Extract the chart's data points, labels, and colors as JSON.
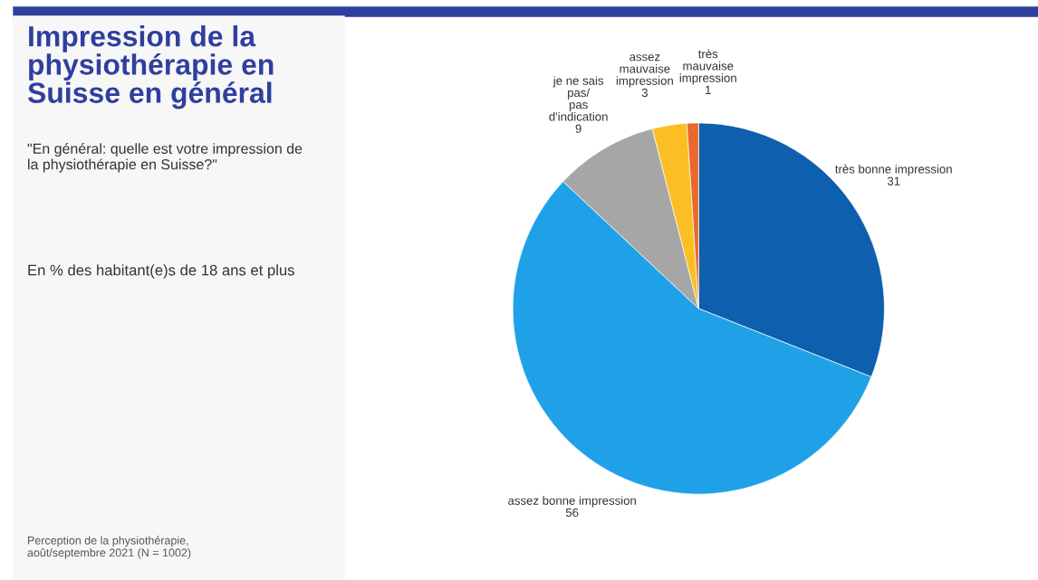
{
  "chart_data": {
    "type": "pie",
    "title": "Impression de la\nphysiothérapie en\nSuisse en général",
    "subtitle": "\"En général: quelle est votre impression de\nla physiothérapie en Suisse?\"",
    "categories": [
      "très bonne impression",
      "assez bonne impression",
      "je ne sais\npas/\npas\nd'indication",
      "assez\nmauvaise\nimpression",
      "très\nmauvaise\nimpression"
    ],
    "values": [
      31,
      56,
      9,
      3,
      1
    ],
    "colors": [
      "#0e5fad",
      "#1fa1e8",
      "#a6a6a6",
      "#fbbf24",
      "#e8692a"
    ],
    "data_labels": true,
    "annotations": [
      "En % des habitant(e)s de 18 ans et plus",
      "Perception de la physiothérapie,\naoût/septembre 2021 (N = 1002)"
    ]
  }
}
